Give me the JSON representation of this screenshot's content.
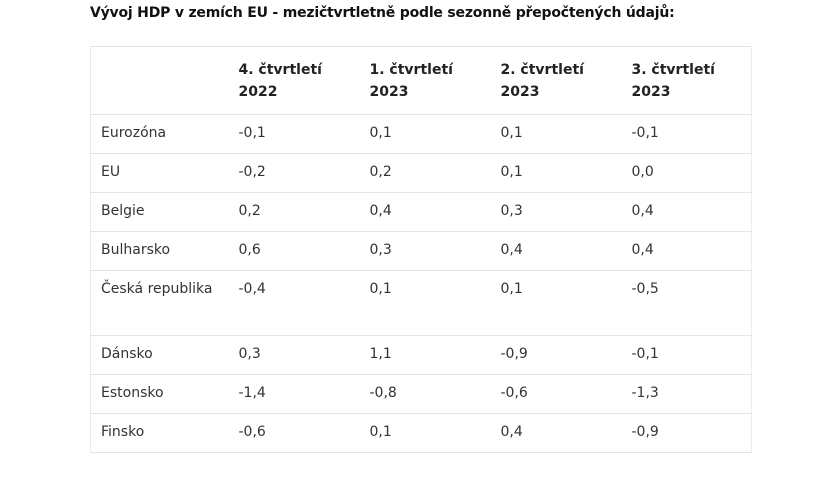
{
  "title": "Vývoj HDP v zemích EU - mezičtvrtletně podle sezonně přepočtených údajů:",
  "table": {
    "headers": [
      "",
      "4. čtvrtletí 2022",
      "1. čtvrtletí 2023",
      "2. čtvrtletí 2023",
      "3. čtvrtletí 2023"
    ],
    "header_lines": [
      [
        "",
        ""
      ],
      [
        "4. čtvrtletí",
        "2022"
      ],
      [
        "1. čtvrtletí",
        "2023"
      ],
      [
        "2. čtvrtletí",
        "2023"
      ],
      [
        "3. čtvrtletí",
        "2023"
      ]
    ],
    "rows": [
      [
        "Eurozóna",
        "-0,1",
        "0,1",
        "0,1",
        "-0,1"
      ],
      [
        "EU",
        "-0,2",
        "0,2",
        "0,1",
        "0,0"
      ],
      [
        "Belgie",
        "0,2",
        "0,4",
        "0,3",
        "0,4"
      ],
      [
        "Bulharsko",
        "0,6",
        "0,3",
        "0,4",
        "0,4"
      ],
      [
        "Česká republika",
        "-0,4",
        "0,1",
        "0,1",
        "-0,5"
      ],
      [
        "Dánsko",
        "0,3",
        "1,1",
        "-0,9",
        "-0,1"
      ],
      [
        "Estonsko",
        "-1,4",
        "-0,8",
        "-0,6",
        "-1,3"
      ],
      [
        "Finsko",
        "-0,6",
        "0,1",
        "0,4",
        "-0,9"
      ]
    ]
  }
}
